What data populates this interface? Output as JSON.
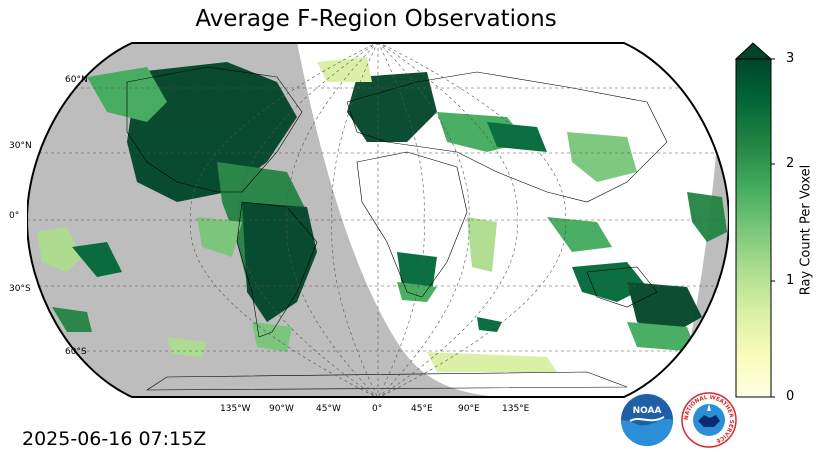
{
  "title": "Average F-Region Observations",
  "timestamp": "2025-06-16 07:15Z",
  "map": {
    "projection": "robinson",
    "night_shading_color": "#bdbdbd",
    "background_color": "#ffffff",
    "graticule_style": "dashed",
    "lat_labels": [
      "60°N",
      "30°N",
      "0°",
      "30°S",
      "60°S"
    ],
    "lon_labels": [
      "135°W",
      "90°W",
      "45°W",
      "0°",
      "45°E",
      "90°E",
      "135°E"
    ]
  },
  "colorbar": {
    "label": "Ray Count Per Voxel",
    "tick_labels": [
      "0",
      "1",
      "2",
      "3"
    ],
    "min": 0,
    "max": 3,
    "extend": "max",
    "colormap": "YlGn",
    "colors": [
      "#ffffe5",
      "#f7fcb9",
      "#d9f0a3",
      "#addd8e",
      "#78c679",
      "#41ab5d",
      "#238443",
      "#006837",
      "#004529"
    ]
  },
  "logos": {
    "noaa": "NOAA",
    "nws_ring": "NATIONAL WEATHER SERVICE"
  },
  "icons": [
    "noaa-logo-icon",
    "nws-logo-icon"
  ]
}
